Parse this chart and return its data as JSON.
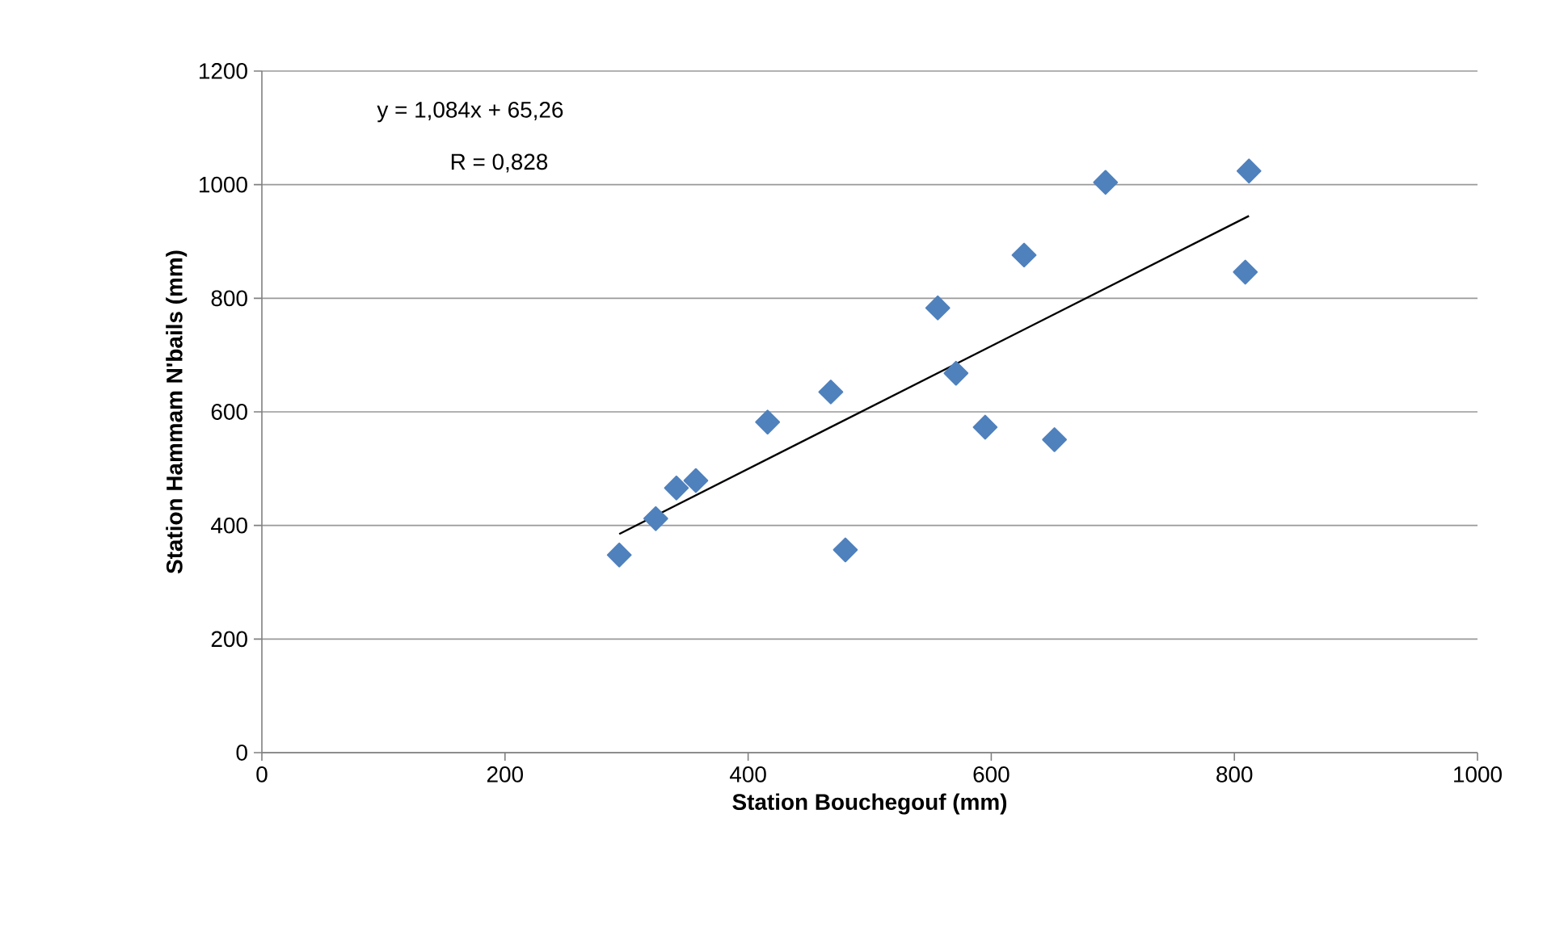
{
  "chart_data": {
    "type": "scatter",
    "xlabel": "Station Bouchegouf (mm)",
    "ylabel": "Station Hammam N'bails (mm)",
    "annotations": [
      "y = 1,084x + 65,26",
      "R = 0,828"
    ],
    "xlim": [
      0,
      1000
    ],
    "ylim": [
      0,
      1200
    ],
    "xticks": [
      0,
      200,
      400,
      600,
      800,
      1000
    ],
    "yticks": [
      0,
      200,
      400,
      600,
      800,
      1000,
      1200
    ],
    "grid": "y",
    "marker": "diamond",
    "series": [
      {
        "color": "#4f81bd",
        "x": [
          294,
          324,
          341,
          357,
          416,
          468,
          480,
          556,
          571,
          595,
          627,
          652,
          694,
          812,
          809
        ],
        "values": [
          348,
          412,
          466,
          479,
          582,
          635,
          357,
          783,
          668,
          573,
          876,
          551,
          1004,
          1024,
          846
        ]
      },
      {
        "type": "line",
        "color": "#000000",
        "marker": "none",
        "x": [
          294,
          812
        ],
        "values": [
          385,
          945
        ]
      }
    ]
  }
}
